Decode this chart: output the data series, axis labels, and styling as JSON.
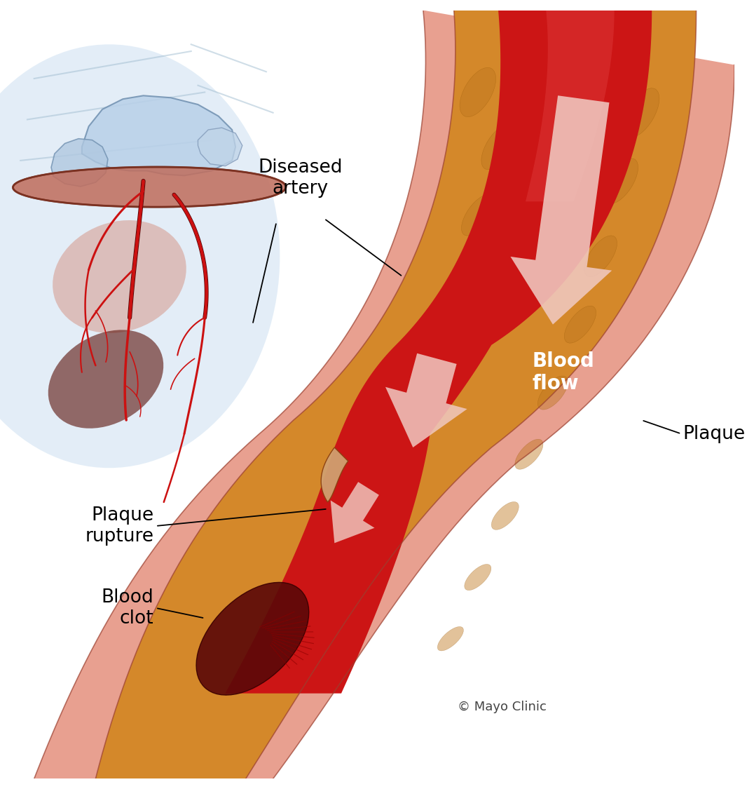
{
  "background_color": "#ffffff",
  "labels": {
    "diseased_artery": "Diseased\nartery",
    "blood_flow": "Blood\nflow",
    "plaque": "Plaque",
    "plaque_rupture": "Plaque\nrupture",
    "blood_clot": "Blood\nclot",
    "copyright": "© Mayo Clinic"
  },
  "artery_wall_color": "#e8a090",
  "artery_wall_dark": "#c06050",
  "plaque_color": "#d4882a",
  "plaque_dark": "#a85010",
  "blood_color": "#cc1515",
  "blood_dark": "#8b0000",
  "arrow_color": "#f0c8c0",
  "heart_muscle": "#c07060",
  "heart_dark_lower": "#6b2010",
  "blue_vessel": "#8ab5d5",
  "blue_vessel_light": "#c0d8ee",
  "coronary_red": "#cc1111",
  "label_fontsize": 19,
  "copyright_fontsize": 13
}
